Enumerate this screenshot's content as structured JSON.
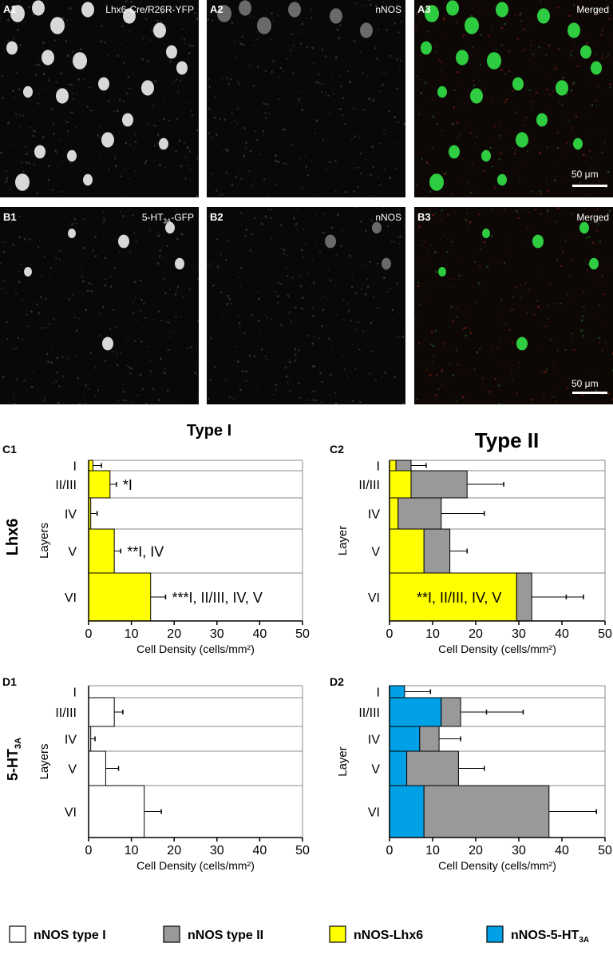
{
  "micrographs": [
    {
      "id": "A1",
      "title": "Lhx6-Cre/R26R-YFP",
      "mode": "gray"
    },
    {
      "id": "A2",
      "title": "nNOS",
      "mode": "gray"
    },
    {
      "id": "A3",
      "title": "Merged",
      "mode": "merged",
      "scale": "50 μm"
    },
    {
      "id": "B1",
      "title": "5-HT",
      "title_sub": "3A",
      "title_suffix": "-GFP",
      "mode": "gray"
    },
    {
      "id": "B2",
      "title": "nNOS",
      "mode": "gray"
    },
    {
      "id": "B3",
      "title": "Merged",
      "mode": "merged",
      "scale": "50 μm"
    }
  ],
  "row_labels": {
    "lhx6": "Lhx6",
    "ht3a": "5-HT",
    "ht3a_sub": "3A"
  },
  "column_titles": {
    "type1": "Type I",
    "type2": "Type II"
  },
  "legend": [
    {
      "label": "nNOS type I",
      "color": "#ffffff"
    },
    {
      "label": "nNOS type II",
      "color": "#999999"
    },
    {
      "label": "nNOS-Lhx6",
      "color": "#ffff00"
    },
    {
      "label": "nNOS-5-HT",
      "label_sub": "3A",
      "color": "#00a0e6"
    }
  ],
  "chart_data": [
    {
      "panel": "C1",
      "type": "bar",
      "orientation": "horizontal",
      "categories": [
        "I",
        "II/III",
        "IV",
        "V",
        "VI"
      ],
      "ylabel": "Layers",
      "xlabel": "Cell Density (cells/mm²)",
      "xlim": [
        0,
        50
      ],
      "xticks": [
        0,
        10,
        20,
        30,
        40,
        50
      ],
      "series": [
        {
          "color": "#ffff00",
          "values": [
            1,
            5,
            0.5,
            6,
            14.5
          ],
          "errors": [
            2,
            1.5,
            1.5,
            1.5,
            3.5
          ]
        }
      ],
      "annotations": [
        "",
        "*I",
        "",
        "**I, IV",
        "***I, II/III, IV, V"
      ]
    },
    {
      "panel": "C2",
      "type": "bar",
      "orientation": "horizontal",
      "stacked": true,
      "categories": [
        "I",
        "II/III",
        "IV",
        "V",
        "VI"
      ],
      "ylabel": "Layer",
      "xlabel": "Cell Density (cells/mm²)",
      "xlim": [
        0,
        50
      ],
      "xticks": [
        0,
        10,
        20,
        30,
        40,
        50
      ],
      "series": [
        {
          "color": "#ffff00",
          "values": [
            1.5,
            5,
            2,
            8,
            29.5
          ],
          "errors": [
            2,
            4.5,
            3,
            4,
            11.5
          ]
        },
        {
          "color": "#999999",
          "values": [
            3.5,
            13,
            10,
            6,
            3.5
          ],
          "errors": [
            3.5,
            8.5,
            10,
            4,
            12
          ]
        }
      ],
      "annotations": [
        "",
        "",
        "",
        "",
        "**I, II/III, IV, V"
      ]
    },
    {
      "panel": "D1",
      "type": "bar",
      "orientation": "horizontal",
      "categories": [
        "I",
        "II/III",
        "IV",
        "V",
        "VI"
      ],
      "ylabel": "Layers",
      "xlabel": "Cell Density (cells/mm²)",
      "xlim": [
        0,
        50
      ],
      "xticks": [
        0,
        10,
        20,
        30,
        40,
        50
      ],
      "series": [
        {
          "color": "#ffffff",
          "values": [
            0,
            6,
            0.5,
            4,
            13
          ],
          "errors": [
            0,
            2,
            1,
            3,
            4
          ]
        }
      ],
      "annotations": [
        "",
        "",
        "",
        "",
        ""
      ]
    },
    {
      "panel": "D2",
      "type": "bar",
      "orientation": "horizontal",
      "stacked": true,
      "categories": [
        "I",
        "II/III",
        "IV",
        "V",
        "VI"
      ],
      "ylabel": "Layer",
      "xlabel": "Cell Density (cells/mm²)",
      "xlim": [
        0,
        50
      ],
      "xticks": [
        0,
        10,
        20,
        30,
        40,
        50
      ],
      "series": [
        {
          "color": "#00a0e6",
          "values": [
            3.5,
            12,
            7,
            4,
            8
          ],
          "errors": [
            6,
            10.5,
            4,
            0.5,
            3.5
          ]
        },
        {
          "color": "#999999",
          "values": [
            0,
            4.5,
            4.5,
            12,
            29
          ],
          "errors": [
            0,
            14.5,
            5,
            6,
            11
          ]
        }
      ],
      "annotations": [
        "",
        "",
        "",
        "",
        ""
      ]
    }
  ]
}
